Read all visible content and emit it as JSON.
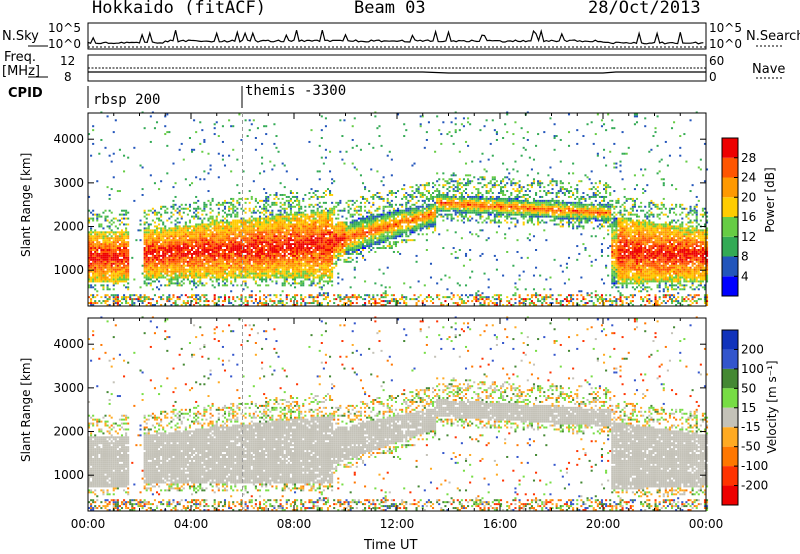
{
  "header": {
    "title": "Hokkaido (fitACF)",
    "beam": "Beam 03",
    "date": "28/Oct/2013"
  },
  "strip_panels": {
    "nsky_label": "N.Sky",
    "nsky_ticks": [
      "10^5",
      "10^0"
    ],
    "nsearch_label": "N.Search",
    "nsearch_ticks": [
      "10^5",
      "10^0"
    ],
    "freq_label_top": "Freq.",
    "freq_label_bottom": "[MHz]",
    "freq_ticks": [
      "12",
      "8"
    ],
    "nave_label": "Nave",
    "nave_ticks": [
      "60",
      "0"
    ],
    "cpid_label": "CPID",
    "cpid_entries": [
      {
        "name": "rbsp 200",
        "start_hour": 0
      },
      {
        "name": "themis -3300",
        "start_hour": 6
      }
    ]
  },
  "chart_data": [
    {
      "type": "heatmap",
      "name": "power-panel",
      "ylabel": "Slant Range [km]",
      "xlabel": "",
      "yticks": [
        1000,
        2000,
        3000,
        4000
      ],
      "ylim": [
        180,
        4600
      ],
      "colorbar": {
        "label": "Power [dB]",
        "ticks": [
          4,
          8,
          12,
          16,
          20,
          24,
          28
        ],
        "colors": [
          "#0000ff",
          "#2255bb",
          "#33aa55",
          "#66cc44",
          "#ffcc00",
          "#ff9900",
          "#ff5500",
          "#ee0000"
        ]
      }
    },
    {
      "type": "heatmap",
      "name": "velocity-panel",
      "ylabel": "Slant Range [km]",
      "xlabel": "Time UT",
      "yticks": [
        1000,
        2000,
        3000,
        4000
      ],
      "ylim": [
        180,
        4600
      ],
      "xticks": [
        "00:00",
        "04:00",
        "08:00",
        "12:00",
        "16:00",
        "20:00",
        "00:00"
      ],
      "xlim": [
        0,
        24
      ],
      "colorbar": {
        "label": "Velocity [m s⁻¹]",
        "ticks": [
          "200",
          "100",
          "50",
          "15",
          "-15",
          "-50",
          "-100",
          "-200"
        ],
        "colors": [
          "#1133bb",
          "#3355cc",
          "#448833",
          "#77dd44",
          "#c4c2b8",
          "#ffaa22",
          "#ff7700",
          "#ff3300",
          "#ee0000"
        ]
      }
    }
  ]
}
